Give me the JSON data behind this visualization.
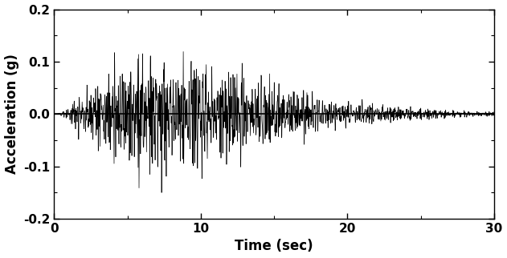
{
  "xlabel": "Time (sec)",
  "ylabel": "Acceleration (g)",
  "xlim": [
    0,
    30
  ],
  "ylim": [
    -0.2,
    0.2
  ],
  "xticks": [
    0,
    10,
    20,
    30
  ],
  "yticks": [
    -0.2,
    -0.1,
    0,
    0.1,
    0.2
  ],
  "minor_xticks": [
    5,
    15,
    25
  ],
  "line_color": "#000000",
  "line_width": 0.5,
  "background_color": "#ffffff",
  "dt": 0.01,
  "duration": 30.0,
  "seed": 7,
  "peak_amplitude": 0.15,
  "xlabel_fontsize": 12,
  "ylabel_fontsize": 12,
  "tick_fontsize": 11,
  "tick_fontweight": "bold"
}
